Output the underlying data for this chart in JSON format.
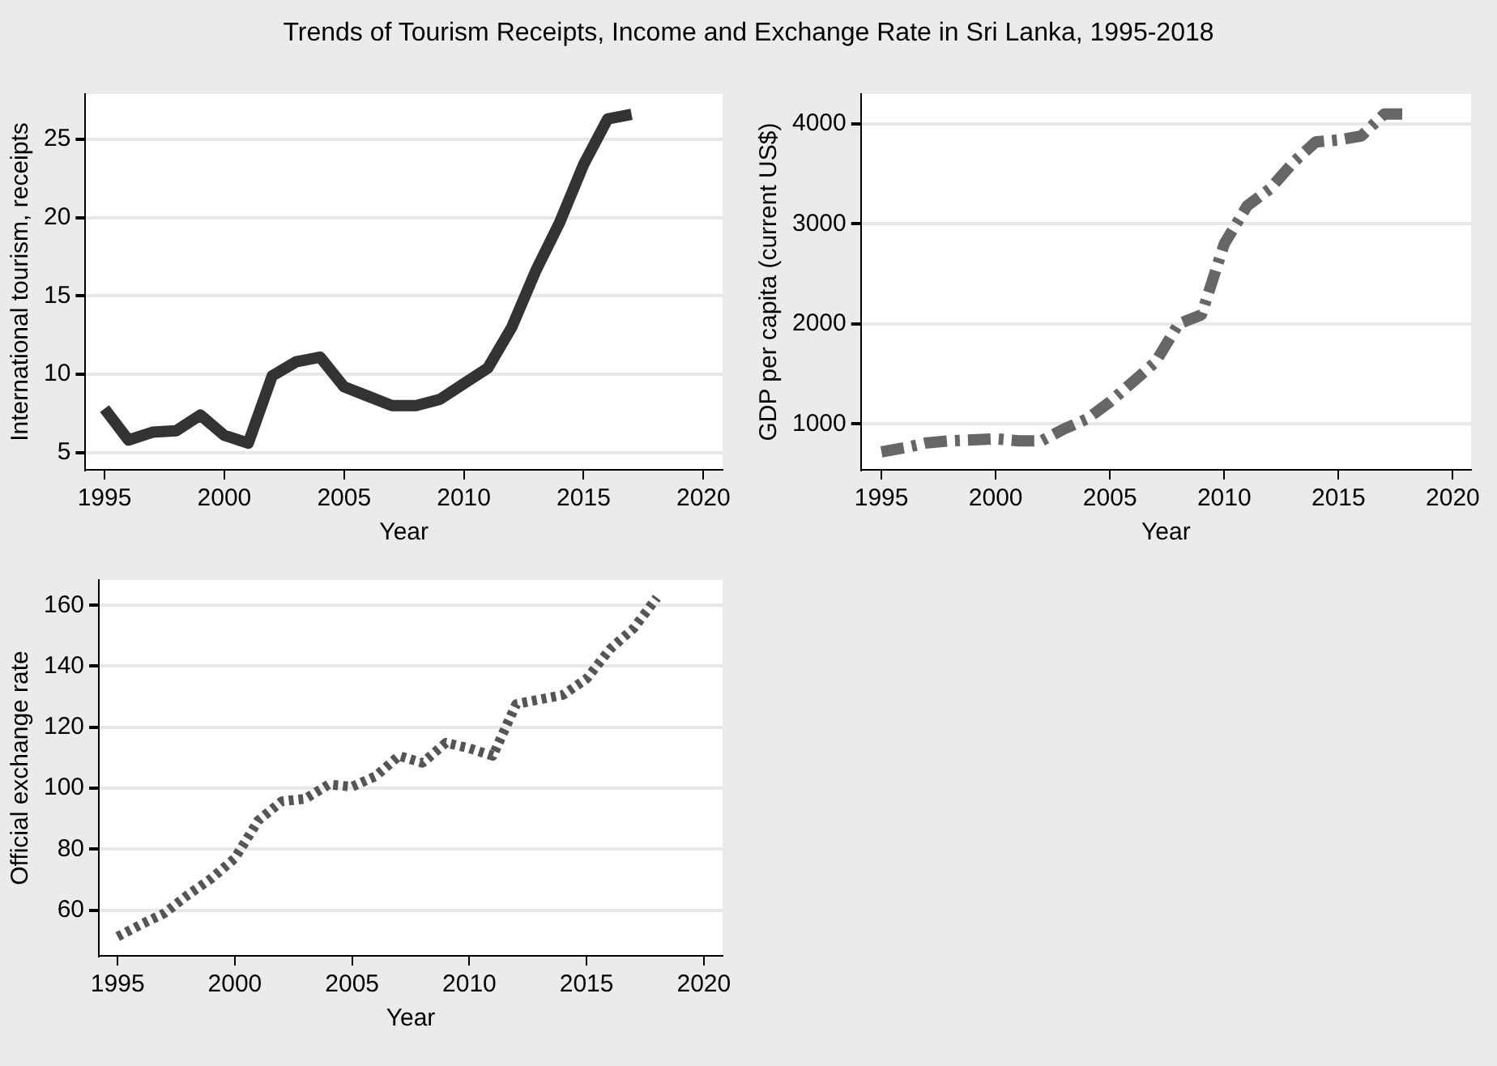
{
  "chart_data": [
    {
      "type": "line",
      "title": "Trends of Tourism Receipts, Income and Exchange Rate in Sri Lanka, 1995-2018",
      "xlabel": "Year",
      "ylabel": "International tourism, receipts",
      "x": [
        1995,
        1996,
        1997,
        1998,
        1999,
        2000,
        2001,
        2002,
        2003,
        2004,
        2005,
        2006,
        2007,
        2008,
        2009,
        2010,
        2011,
        2012,
        2013,
        2014,
        2015,
        2016,
        2017
      ],
      "values": [
        7.8,
        5.8,
        6.3,
        6.4,
        7.4,
        6.1,
        5.6,
        9.9,
        10.8,
        11.1,
        9.2,
        8.6,
        8.0,
        8.0,
        8.4,
        9.4,
        10.4,
        13.0,
        16.6,
        19.7,
        23.4,
        26.3,
        26.6
      ],
      "color": "#333333",
      "line_style": "solid",
      "xlim": [
        1994.2,
        2020.8
      ],
      "ylim": [
        3.9,
        27.9
      ],
      "xticks": [
        1995,
        2000,
        2005,
        2010,
        2015,
        2020
      ],
      "yticks": [
        5,
        10,
        15,
        20,
        25
      ],
      "grid": "y"
    },
    {
      "type": "line",
      "xlabel": "Year",
      "ylabel": "GDP per capita (current US$)",
      "x": [
        1995,
        1996,
        1997,
        1998,
        1999,
        2000,
        2001,
        2002,
        2003,
        2004,
        2005,
        2006,
        2007,
        2008,
        2009,
        2010,
        2011,
        2012,
        2013,
        2014,
        2015,
        2016,
        2017,
        2018
      ],
      "values": [
        720,
        760,
        810,
        830,
        840,
        850,
        830,
        830,
        950,
        1050,
        1220,
        1420,
        1620,
        2000,
        2090,
        2800,
        3180,
        3350,
        3610,
        3820,
        3840,
        3880,
        4100,
        4100
      ],
      "color": "#666666",
      "line_style": "dashed",
      "xlim": [
        1994.1,
        2020.8
      ],
      "ylim": [
        540,
        4300
      ],
      "xticks": [
        1995,
        2000,
        2005,
        2010,
        2015,
        2020
      ],
      "yticks": [
        1000,
        2000,
        3000,
        4000
      ],
      "grid": "y"
    },
    {
      "type": "line",
      "xlabel": "Year",
      "ylabel": "Official exchange rate",
      "x": [
        1995,
        1996,
        1997,
        1998,
        1999,
        2000,
        2001,
        2002,
        2003,
        2004,
        2005,
        2006,
        2007,
        2008,
        2009,
        2010,
        2011,
        2012,
        2013,
        2014,
        2015,
        2016,
        2017,
        2018
      ],
      "values": [
        51.3,
        55.3,
        59,
        65,
        70.4,
        77,
        89.4,
        95.7,
        96.5,
        101.2,
        100.5,
        103.9,
        110.6,
        108.3,
        114.9,
        113.1,
        110.6,
        127.6,
        129.1,
        130.6,
        135.9,
        145.6,
        152.4,
        162.5
      ],
      "color": "#555555",
      "line_style": "dotted",
      "xlim": [
        1994.2,
        2020.8
      ],
      "ylim": [
        45,
        168.3
      ],
      "xticks": [
        1995,
        2000,
        2005,
        2010,
        2015,
        2020
      ],
      "yticks": [
        60,
        80,
        100,
        120,
        140,
        160
      ],
      "grid": "y"
    }
  ]
}
